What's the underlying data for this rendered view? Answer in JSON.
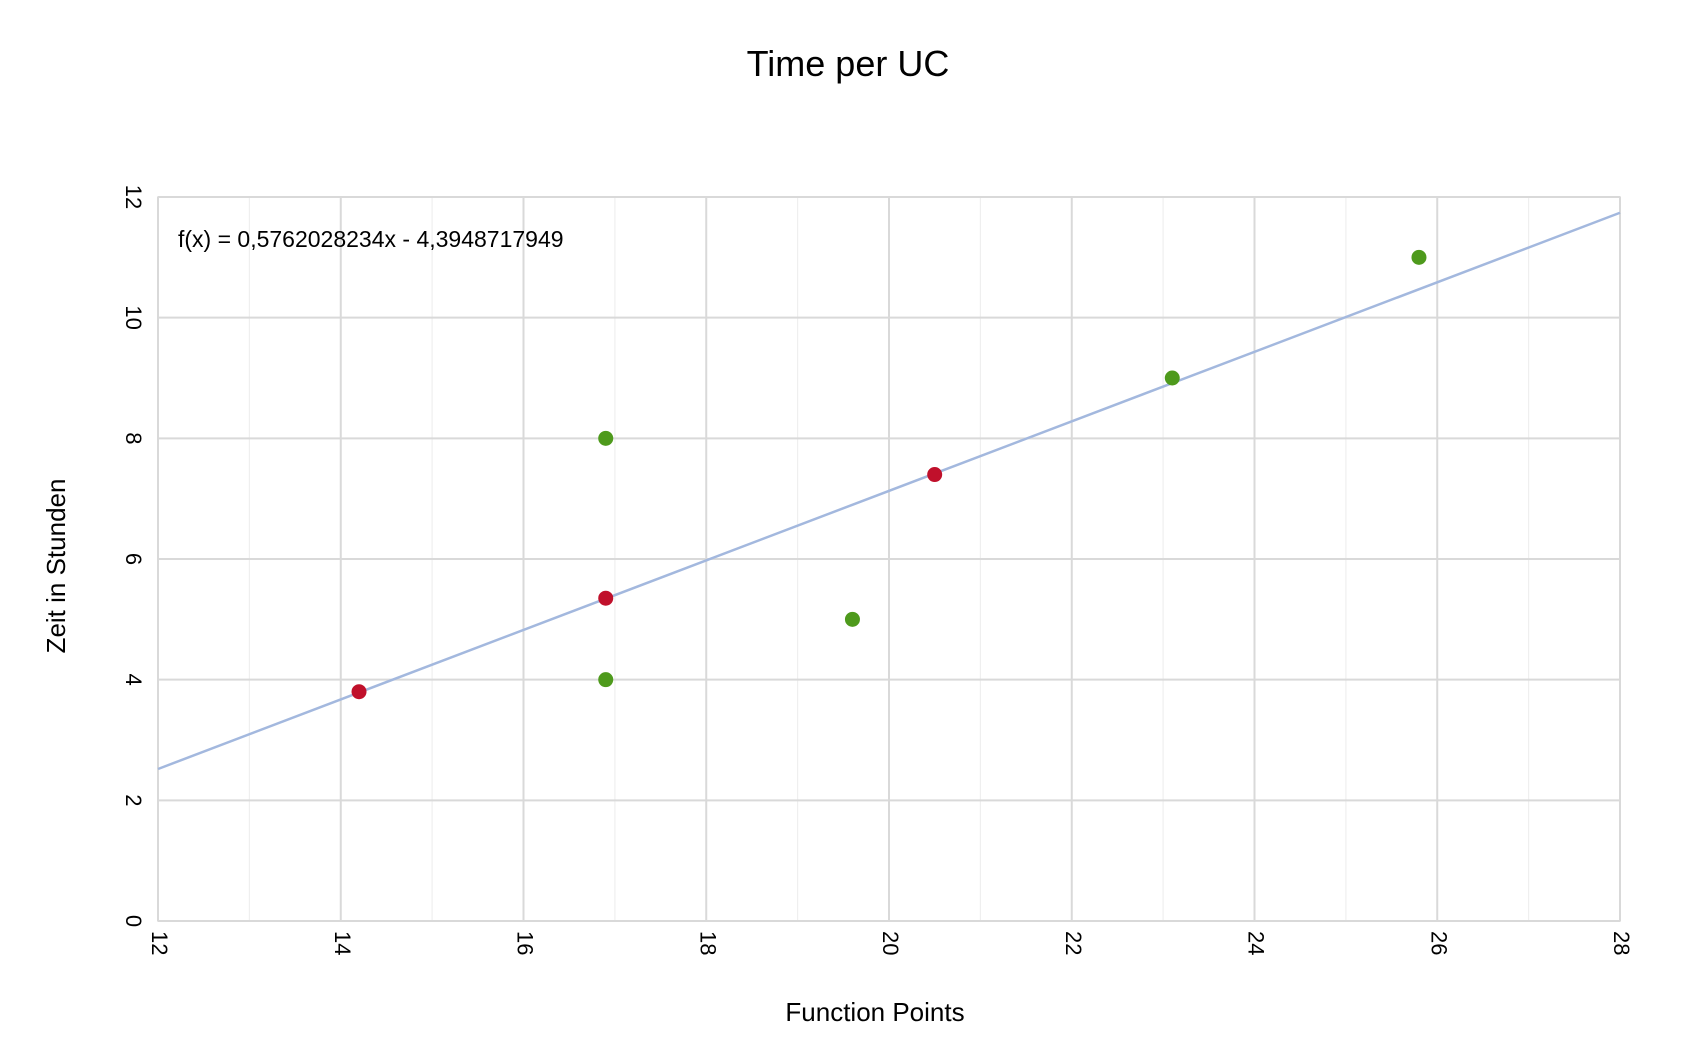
{
  "chart_data": {
    "type": "scatter",
    "title": "Time per UC",
    "xlabel": "Function Points",
    "ylabel": "Zeit in Stunden",
    "xlim": [
      12,
      28
    ],
    "ylim": [
      0,
      12
    ],
    "x_major_step": 2,
    "x_minor_step": 1,
    "y_major_step": 2,
    "x_tick_labels": [
      "12",
      "14",
      "16",
      "18",
      "20",
      "22",
      "24",
      "26",
      "28"
    ],
    "y_tick_labels": [
      "0",
      "2",
      "4",
      "6",
      "8",
      "10",
      "12"
    ],
    "grid": true,
    "legend": "none",
    "series": [
      {
        "color": "#4e9a1c",
        "points": [
          {
            "x": 16.9,
            "y": 8
          },
          {
            "x": 16.9,
            "y": 4
          },
          {
            "x": 19.6,
            "y": 5
          },
          {
            "x": 23.1,
            "y": 9
          },
          {
            "x": 25.8,
            "y": 11
          }
        ]
      },
      {
        "color": "#c0102b",
        "points": [
          {
            "x": 14.2,
            "y": 3.8
          },
          {
            "x": 16.9,
            "y": 5.35
          },
          {
            "x": 20.5,
            "y": 7.4
          }
        ]
      }
    ],
    "trendline": {
      "slope": 0.5762028234,
      "intercept": -4.3948717949,
      "color": "#a3b8de",
      "equation": "f(x) = 0,5762028234x - 4,3948717949"
    }
  }
}
